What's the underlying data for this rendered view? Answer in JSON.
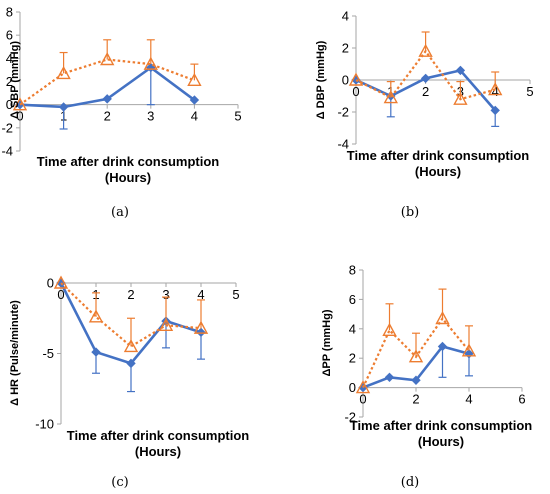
{
  "colors": {
    "control": "#4472C4",
    "treatment": "#ED7D31",
    "axis": "#A6A6A6"
  },
  "chart_data": [
    {
      "type": "line",
      "panel_label": "(a)",
      "ylabel": "Δ SBP (mmHg)",
      "xlabel": "Time after drink consumption",
      "xlabel2": "(Hours)",
      "xlim": [
        0,
        5
      ],
      "ylim": [
        -4,
        8
      ],
      "xticks": [
        0,
        1,
        2,
        3,
        4,
        5
      ],
      "yticks": [
        -4,
        -2,
        0,
        2,
        4,
        6,
        8
      ],
      "series": [
        {
          "x": [
            0,
            1,
            2,
            3,
            4
          ],
          "values": [
            0,
            -0.2,
            0.5,
            3.2,
            0.4
          ],
          "err_lo": [
            0,
            1.9,
            0,
            3.2,
            0
          ],
          "err_hi": [
            0,
            0,
            0,
            0,
            0
          ],
          "style": "solid",
          "marker": "diamond",
          "color_key": "control"
        },
        {
          "x": [
            0,
            1,
            2,
            3,
            4
          ],
          "values": [
            0,
            2.7,
            3.9,
            3.5,
            2.1
          ],
          "err_lo": [
            0,
            0,
            0,
            0,
            0
          ],
          "err_hi": [
            0,
            1.8,
            1.7,
            2.1,
            1.4
          ],
          "style": "dotted",
          "marker": "triangle",
          "color_key": "treatment"
        }
      ]
    },
    {
      "type": "line",
      "panel_label": "(b)",
      "ylabel": "Δ DBP (mmHg)",
      "xlabel": "Time after drink consumption",
      "xlabel2": "(Hours)",
      "xlim": [
        0,
        5
      ],
      "ylim": [
        -4,
        4
      ],
      "xticks": [
        0,
        1,
        2,
        3,
        4,
        5
      ],
      "yticks": [
        -4,
        -2,
        0,
        2,
        4
      ],
      "series": [
        {
          "x": [
            0,
            1,
            2,
            3,
            4
          ],
          "values": [
            0,
            -1,
            0.1,
            0.6,
            -1.9
          ],
          "err_lo": [
            0,
            1.3,
            0,
            0,
            1.0
          ],
          "err_hi": [
            0,
            0,
            0,
            0,
            0
          ],
          "style": "solid",
          "marker": "diamond",
          "color_key": "control"
        },
        {
          "x": [
            0,
            1,
            2,
            3,
            4
          ],
          "values": [
            0,
            -1.1,
            1.8,
            -1.2,
            -0.6
          ],
          "err_lo": [
            0,
            0,
            0,
            0,
            0
          ],
          "err_hi": [
            0,
            1.0,
            1.2,
            1.1,
            1.1
          ],
          "style": "dotted",
          "marker": "triangle",
          "color_key": "treatment"
        }
      ]
    },
    {
      "type": "line",
      "panel_label": "(c)",
      "ylabel": "Δ HR (Pulse/minute)",
      "xlabel": "Time after drink consumption",
      "xlabel2": "(Hours)",
      "xlim": [
        0,
        5
      ],
      "ylim": [
        -10,
        0
      ],
      "xticks": [
        0,
        1,
        2,
        3,
        4,
        5
      ],
      "yticks": [
        -10,
        -5,
        0
      ],
      "series": [
        {
          "x": [
            0,
            1,
            2,
            3,
            4
          ],
          "values": [
            0,
            -4.9,
            -5.7,
            -2.7,
            -3.5
          ],
          "err_lo": [
            0,
            1.5,
            2.0,
            1.9,
            1.9
          ],
          "err_hi": [
            0,
            0,
            0,
            0,
            0
          ],
          "style": "solid",
          "marker": "diamond",
          "color_key": "control"
        },
        {
          "x": [
            0,
            1,
            2,
            3,
            4
          ],
          "values": [
            0,
            -2.4,
            -4.5,
            -3.0,
            -3.2
          ],
          "err_lo": [
            0,
            0,
            0,
            0,
            0
          ],
          "err_hi": [
            0,
            1.7,
            2.0,
            2.0,
            2.0
          ],
          "style": "dotted",
          "marker": "triangle",
          "color_key": "treatment"
        }
      ]
    },
    {
      "type": "line",
      "panel_label": "(d)",
      "ylabel": "ΔPP (mmHg)",
      "xlabel": "Time after drink consumption",
      "xlabel2": "(Hours)",
      "xlim": [
        0,
        6
      ],
      "ylim": [
        -2,
        8
      ],
      "xticks": [
        0,
        2,
        4,
        6
      ],
      "yticks": [
        -2,
        0,
        2,
        4,
        6,
        8
      ],
      "series": [
        {
          "x": [
            0,
            1,
            2,
            3,
            4
          ],
          "values": [
            0,
            0.7,
            0.5,
            2.8,
            2.3
          ],
          "err_lo": [
            0,
            0,
            0,
            2.1,
            1.5
          ],
          "err_hi": [
            0,
            0,
            0,
            0,
            0
          ],
          "style": "solid",
          "marker": "diamond",
          "color_key": "control"
        },
        {
          "x": [
            0,
            1,
            2,
            3,
            4
          ],
          "values": [
            0,
            3.9,
            2.1,
            4.7,
            2.5
          ],
          "err_lo": [
            0,
            0,
            0,
            0,
            0
          ],
          "err_hi": [
            0,
            1.8,
            1.6,
            2.0,
            1.7
          ],
          "style": "dotted",
          "marker": "triangle",
          "color_key": "treatment"
        }
      ]
    }
  ]
}
